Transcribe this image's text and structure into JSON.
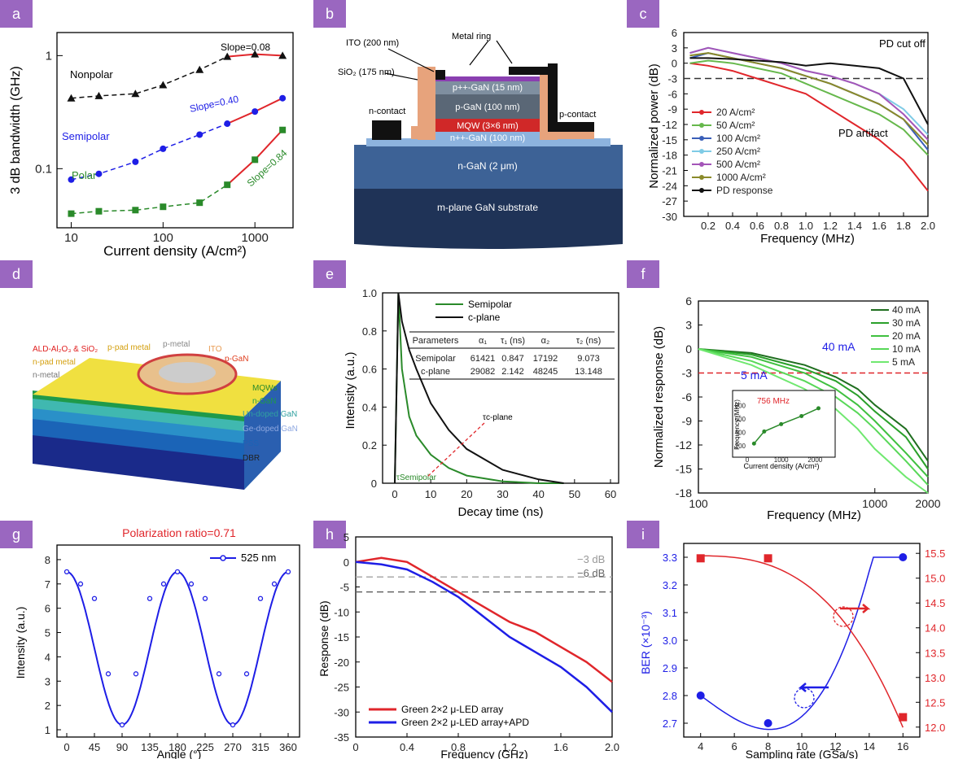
{
  "panels": [
    "a",
    "b",
    "c",
    "d",
    "e",
    "f",
    "g",
    "h",
    "i"
  ],
  "a": {
    "ylabel": "3 dB bandwidth (GHz)",
    "xlabel": "Current density (A/cm²)",
    "xticks": [
      "10",
      "100",
      "1000"
    ],
    "yticks": [
      "0.1",
      "1"
    ],
    "labels": {
      "nonpolar": "Nonpolar",
      "semipolar": "Semipolar",
      "polar": "Polar",
      "s1": "Slope=0.08",
      "s2": "Slope=0.40",
      "s3": "Slope=0.84"
    }
  },
  "b": {
    "labels": [
      "ITO (200 nm)",
      "Metal ring",
      "SiO₂ (175 nm)",
      "p++-GaN (15 nm)",
      "p-GaN (100 nm)",
      "MQW (3×6 nm)",
      "n++-GaN (100 nm)",
      "n-GaN (2 μm)",
      "m-plane GaN substrate",
      "n-contact",
      "p-contact"
    ]
  },
  "c": {
    "ylabel": "Normalized power (dB)",
    "xlabel": "Frequency (MHz)",
    "yticks": [
      "6",
      "3",
      "0",
      "-3",
      "-6",
      "-9",
      "-12",
      "-15",
      "-18",
      "-21",
      "-24",
      "-27",
      "-30"
    ],
    "xticks": [
      "0.2",
      "0.4",
      "0.6",
      "0.8",
      "1.0",
      "1.2",
      "1.4",
      "1.6",
      "1.8",
      "2.0"
    ],
    "legend": [
      "20 A/cm²",
      "50 A/cm²",
      "100 A/cm²",
      "250 A/cm²",
      "500 A/cm²",
      "1000 A/cm²",
      "PD response"
    ],
    "ann1": "PD cut off",
    "ann2": "PD artifact"
  },
  "d": {
    "labels": [
      "ALD-Al₂O₃ & SiO₂",
      "p-pad metal",
      "p-metal",
      "ITO",
      "p-GaN",
      "n-pad metal",
      "n-metal",
      "MQWs",
      "n-GaN",
      "Un-doped GaN",
      "Ge-doped GaN",
      "PSS",
      "DBR"
    ]
  },
  "e": {
    "ylabel": "Intensity (a.u.)",
    "xlabel": "Decay time (ns)",
    "yticks": [
      "1.0",
      "0.8",
      "0.6",
      "0.4",
      "0.2",
      "0"
    ],
    "xticks": [
      "0",
      "10",
      "20",
      "30",
      "40",
      "50",
      "60"
    ],
    "legend": [
      "Semipolar",
      "c-plane"
    ],
    "table": {
      "header": [
        "Parameters",
        "α₁",
        "τ₁ (ns)",
        "α₂",
        "τ₂ (ns)"
      ],
      "rows": [
        [
          "Semipolar",
          "61421",
          "0.847",
          "17192",
          "9.073"
        ],
        [
          "c-plane",
          "29082",
          "2.142",
          "48245",
          "13.148"
        ]
      ]
    },
    "tau_c": "τc-plane",
    "tau_s": "τSemipolar"
  },
  "f": {
    "ylabel": "Normalized response (dB)",
    "xlabel": "Frequency (MHz)",
    "yticks": [
      "6",
      "3",
      "0",
      "-3",
      "-6",
      "-9",
      "-12",
      "-15",
      "-18"
    ],
    "xticks": [
      "100",
      "1000",
      "2000"
    ],
    "legend": [
      "40 mA",
      "30 mA",
      "20 mA",
      "10 mA",
      "5 mA"
    ],
    "ann40": "40 mA",
    "ann5": "5 mA",
    "inset": {
      "ylabel": "Frequency (MHz)",
      "xlabel": "Current density (A/cm²)",
      "note": "756 MHz",
      "yticks": [
        "800",
        "600",
        "400",
        "200"
      ],
      "xticks": [
        "0",
        "1000",
        "2000"
      ]
    }
  },
  "g": {
    "title": "Polarization ratio=0.71",
    "ylabel": "Intensity (a.u.)",
    "xlabel": "Angle (°)",
    "legend": "525 nm",
    "yticks": [
      "8",
      "7",
      "6",
      "5",
      "4",
      "3",
      "2",
      "1"
    ],
    "xticks": [
      "0",
      "45",
      "90",
      "135",
      "180",
      "225",
      "270",
      "315",
      "360"
    ]
  },
  "h": {
    "ylabel": "Response (dB)",
    "xlabel": "Frequency (GHz)",
    "yticks": [
      "5",
      "0",
      "-5",
      "-10",
      "-15",
      "-20",
      "-25",
      "-30",
      "-35"
    ],
    "xticks": [
      "0",
      "0.4",
      "0.8",
      "1.2",
      "1.6",
      "2.0"
    ],
    "ref1": "−3 dB",
    "ref2": "−6 dB",
    "legend": [
      "Green 2×2 μ-LED array",
      "Green 2×2 μ-LED array+APD"
    ]
  },
  "i": {
    "ylabel": "BER (×10⁻³)",
    "xlabel": "Sampling rate (GSa/s)",
    "yticks": [
      "3.3",
      "3.2",
      "3.1",
      "3.0",
      "2.9",
      "2.8",
      "2.7"
    ],
    "y2ticks": [
      "15.5",
      "15.0",
      "14.5",
      "14.0",
      "13.5",
      "13.0",
      "12.5",
      "12.0"
    ],
    "xticks": [
      "4",
      "6",
      "8",
      "10",
      "12",
      "14",
      "16"
    ]
  },
  "chart_data": [
    {
      "panel": "a",
      "type": "line",
      "xlabel": "Current density (A/cm²)",
      "ylabel": "3 dB bandwidth (GHz)",
      "xscale": "log",
      "yscale": "log",
      "series": [
        {
          "name": "Nonpolar",
          "x": [
            10,
            20,
            50,
            100,
            250,
            500,
            1000,
            2000
          ],
          "y": [
            0.42,
            0.44,
            0.46,
            0.55,
            0.75,
            0.98,
            1.03,
            1.0
          ]
        },
        {
          "name": "Semipolar",
          "x": [
            10,
            20,
            50,
            100,
            250,
            500,
            1000,
            2000
          ],
          "y": [
            0.08,
            0.09,
            0.115,
            0.15,
            0.2,
            0.25,
            0.32,
            0.42
          ]
        },
        {
          "name": "Polar",
          "x": [
            10,
            20,
            50,
            100,
            250,
            500,
            1000,
            2000
          ],
          "y": [
            0.04,
            0.042,
            0.043,
            0.046,
            0.05,
            0.072,
            0.12,
            0.22
          ]
        }
      ]
    },
    {
      "panel": "c",
      "type": "line",
      "xlabel": "Frequency (MHz)",
      "ylabel": "Normalized power (dB)",
      "ylim": [
        -30,
        6
      ],
      "series": [
        {
          "name": "20 A/cm²",
          "x": [
            0.05,
            0.2,
            0.4,
            0.6,
            0.8,
            1.0,
            1.2,
            1.4,
            1.6,
            1.8,
            2.0
          ],
          "y": [
            0,
            -0.5,
            -1.5,
            -3,
            -4.5,
            -6,
            -9,
            -12,
            -15,
            -19,
            -25
          ]
        },
        {
          "name": "50 A/cm²",
          "x": [
            0.05,
            0.2,
            0.4,
            0.6,
            0.8,
            1.0,
            1.2,
            1.4,
            1.6,
            1.8,
            2.0
          ],
          "y": [
            0,
            0.5,
            0,
            -1,
            -2,
            -4,
            -6,
            -8,
            -10,
            -13,
            -18
          ]
        },
        {
          "name": "100 A/cm²",
          "x": [
            0.05,
            0.2,
            0.4,
            0.6,
            0.8,
            1.0,
            1.2,
            1.4,
            1.6,
            1.8,
            2.0
          ],
          "y": [
            1,
            2,
            1,
            0,
            -1,
            -2.5,
            -4,
            -6,
            -8,
            -11,
            -17
          ]
        },
        {
          "name": "250 A/cm²",
          "x": [
            0.05,
            0.2,
            0.4,
            0.6,
            0.8,
            1.0,
            1.2,
            1.4,
            1.6,
            1.8,
            2.0
          ],
          "y": [
            2,
            3,
            2,
            1,
            0,
            -1.5,
            -2.5,
            -4,
            -6,
            -9,
            -14
          ]
        },
        {
          "name": "500 A/cm²",
          "x": [
            0.05,
            0.2,
            0.4,
            0.6,
            0.8,
            1.0,
            1.2,
            1.4,
            1.6,
            1.8,
            2.0
          ],
          "y": [
            2,
            3,
            2,
            1,
            0,
            -1.5,
            -2.5,
            -4,
            -6,
            -10,
            -15
          ]
        },
        {
          "name": "1000 A/cm²",
          "x": [
            0.05,
            0.2,
            0.4,
            0.6,
            0.8,
            1.0,
            1.2,
            1.4,
            1.6,
            1.8,
            2.0
          ],
          "y": [
            1.5,
            2,
            1,
            0,
            -1,
            -2.5,
            -4,
            -6,
            -8,
            -11,
            -16
          ]
        },
        {
          "name": "PD response",
          "x": [
            0.05,
            0.2,
            0.4,
            0.6,
            0.8,
            1.0,
            1.2,
            1.4,
            1.6,
            1.8,
            2.0
          ],
          "y": [
            1,
            1,
            0.8,
            0.5,
            0.2,
            -0.5,
            0,
            -0.5,
            -1,
            -3,
            -12
          ]
        }
      ]
    },
    {
      "panel": "e",
      "type": "line",
      "xlabel": "Decay time (ns)",
      "ylabel": "Intensity (a.u.)",
      "ylim": [
        0,
        1
      ],
      "series": [
        {
          "name": "Semipolar",
          "x": [
            0,
            1,
            2,
            4,
            6,
            10,
            15,
            20,
            30,
            40,
            47
          ],
          "y": [
            0,
            1,
            0.6,
            0.35,
            0.25,
            0.15,
            0.08,
            0.04,
            0.01,
            0,
            0
          ]
        },
        {
          "name": "c-plane",
          "x": [
            0,
            1,
            2,
            4,
            6,
            10,
            15,
            20,
            30,
            40,
            47
          ],
          "y": [
            0,
            1,
            0.85,
            0.7,
            0.6,
            0.42,
            0.28,
            0.18,
            0.07,
            0.02,
            0
          ]
        }
      ]
    },
    {
      "panel": "f",
      "type": "line",
      "xlabel": "Frequency (MHz)",
      "ylabel": "Normalized response (dB)",
      "xscale": "log",
      "ylim": [
        -18,
        6
      ],
      "series": [
        {
          "name": "40 mA",
          "x": [
            100,
            200,
            400,
            600,
            800,
            1000,
            1500,
            2000
          ],
          "y": [
            0,
            -0.5,
            -2,
            -3.5,
            -5,
            -7,
            -10,
            -14
          ]
        },
        {
          "name": "30 mA",
          "x": [
            100,
            200,
            400,
            600,
            800,
            1000,
            1500,
            2000
          ],
          "y": [
            0,
            -0.7,
            -2.5,
            -4,
            -5.8,
            -7.8,
            -11,
            -15
          ]
        },
        {
          "name": "20 mA",
          "x": [
            100,
            200,
            400,
            600,
            800,
            1000,
            1500,
            2000
          ],
          "y": [
            0,
            -1,
            -3,
            -5,
            -7,
            -9,
            -13,
            -16
          ]
        },
        {
          "name": "10 mA",
          "x": [
            100,
            200,
            400,
            600,
            800,
            1000,
            1500,
            2000
          ],
          "y": [
            0,
            -1.5,
            -4,
            -6,
            -8,
            -10,
            -14,
            -17
          ]
        },
        {
          "name": "5 mA",
          "x": [
            100,
            200,
            400,
            600,
            800,
            1000,
            1500,
            2000
          ],
          "y": [
            0,
            -2,
            -5,
            -7.5,
            -10,
            -12.5,
            -16,
            -18
          ]
        }
      ],
      "inset": {
        "x": [
          200,
          500,
          1000,
          1600,
          2100
        ],
        "y": [
          230,
          410,
          520,
          640,
          756
        ]
      }
    },
    {
      "panel": "g",
      "type": "line",
      "xlabel": "Angle (°)",
      "ylabel": "Intensity (a.u.)",
      "series": [
        {
          "name": "525 nm",
          "x": [
            0,
            22.5,
            45,
            67.5,
            90,
            112.5,
            135,
            157.5,
            180,
            202.5,
            225,
            247.5,
            270,
            292.5,
            315,
            337.5,
            360
          ],
          "y": [
            7.5,
            7.0,
            6.4,
            3.3,
            1.2,
            3.3,
            6.4,
            7.0,
            7.5,
            7.0,
            6.4,
            3.3,
            1.2,
            3.3,
            6.4,
            7.0,
            7.5
          ]
        }
      ]
    },
    {
      "panel": "h",
      "type": "line",
      "xlabel": "Frequency (GHz)",
      "ylabel": "Response (dB)",
      "ylim": [
        -35,
        5
      ],
      "series": [
        {
          "name": "Green 2×2 μ-LED array",
          "x": [
            0,
            0.2,
            0.4,
            0.6,
            0.8,
            1.0,
            1.2,
            1.4,
            1.6,
            1.8,
            2.0
          ],
          "y": [
            0,
            0.8,
            0,
            -3,
            -6,
            -9,
            -12,
            -14,
            -17,
            -20,
            -24
          ]
        },
        {
          "name": "Green 2×2 μ-LED array+APD",
          "x": [
            0,
            0.2,
            0.4,
            0.6,
            0.8,
            1.0,
            1.2,
            1.4,
            1.6,
            1.8,
            2.0
          ],
          "y": [
            0,
            -0.5,
            -1.5,
            -4,
            -7,
            -11,
            -15,
            -18,
            -21,
            -25,
            -30
          ]
        }
      ]
    },
    {
      "panel": "i",
      "type": "scatter",
      "xlabel": "Sampling rate (GSa/s)",
      "ylabel": "BER (×10⁻³)",
      "series": [
        {
          "name": "BER",
          "x": [
            4,
            8,
            16
          ],
          "y": [
            2.8,
            2.7,
            3.3
          ]
        },
        {
          "name": "right-axis",
          "x": [
            4,
            8,
            16
          ],
          "y": [
            15.4,
            15.4,
            12.2
          ]
        }
      ]
    }
  ],
  "colors": {
    "badge": "#9a67c0",
    "red": "#e0262b",
    "blue": "#1e1ee6",
    "green": "#2a8a2a"
  }
}
